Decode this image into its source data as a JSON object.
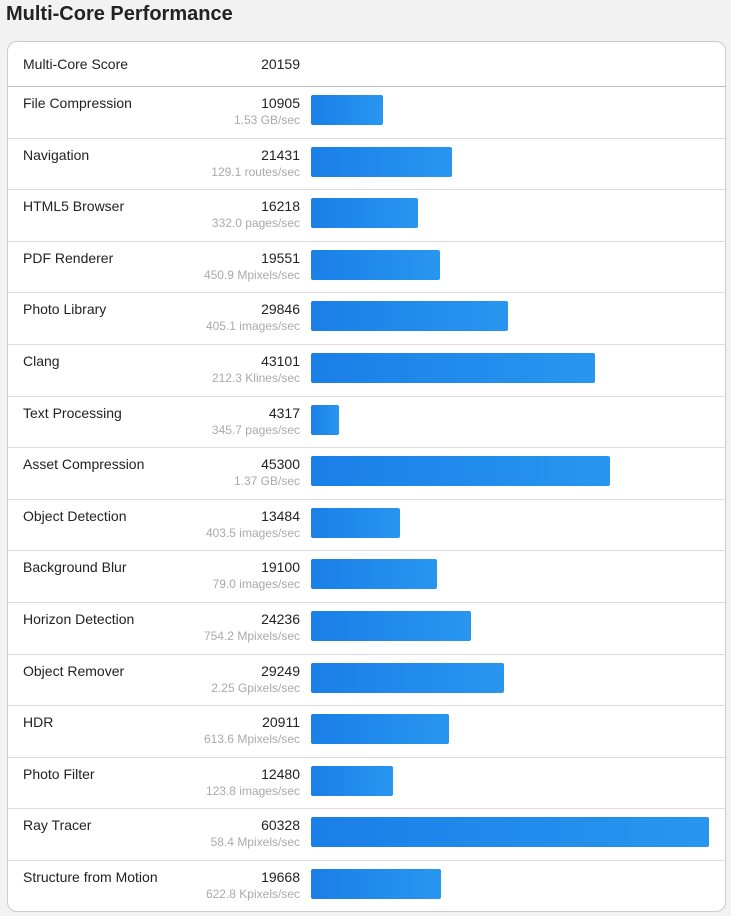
{
  "title": "Multi-Core Performance",
  "score": {
    "label": "Multi-Core Score",
    "value": "20159"
  },
  "max_value": 60328,
  "bar_color": "#1a7fe8",
  "rows": [
    {
      "name": "File Compression",
      "score": 10905,
      "rate": "1.53 GB/sec"
    },
    {
      "name": "Navigation",
      "score": 21431,
      "rate": "129.1 routes/sec"
    },
    {
      "name": "HTML5 Browser",
      "score": 16218,
      "rate": "332.0 pages/sec"
    },
    {
      "name": "PDF Renderer",
      "score": 19551,
      "rate": "450.9 Mpixels/sec"
    },
    {
      "name": "Photo Library",
      "score": 29846,
      "rate": "405.1 images/sec"
    },
    {
      "name": "Clang",
      "score": 43101,
      "rate": "212.3 Klines/sec"
    },
    {
      "name": "Text Processing",
      "score": 4317,
      "rate": "345.7 pages/sec"
    },
    {
      "name": "Asset Compression",
      "score": 45300,
      "rate": "1.37 GB/sec"
    },
    {
      "name": "Object Detection",
      "score": 13484,
      "rate": "403.5 images/sec"
    },
    {
      "name": "Background Blur",
      "score": 19100,
      "rate": "79.0 images/sec"
    },
    {
      "name": "Horizon Detection",
      "score": 24236,
      "rate": "754.2 Mpixels/sec"
    },
    {
      "name": "Object Remover",
      "score": 29249,
      "rate": "2.25 Gpixels/sec"
    },
    {
      "name": "HDR",
      "score": 20911,
      "rate": "613.6 Mpixels/sec"
    },
    {
      "name": "Photo Filter",
      "score": 12480,
      "rate": "123.8 images/sec"
    },
    {
      "name": "Ray Tracer",
      "score": 60328,
      "rate": "58.4 Mpixels/sec"
    },
    {
      "name": "Structure from Motion",
      "score": 19668,
      "rate": "622.8 Kpixels/sec"
    }
  ]
}
